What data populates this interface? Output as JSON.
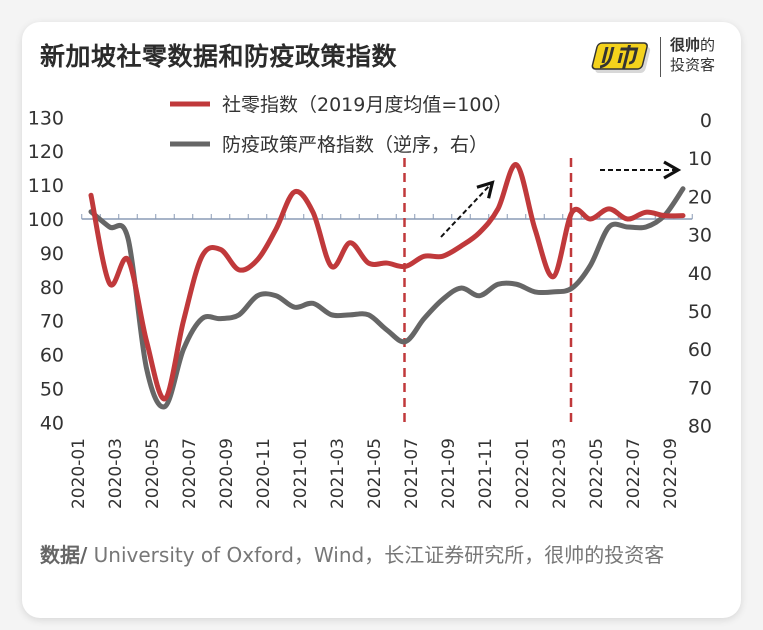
{
  "title": "新加坡社零数据和防疫政策指数",
  "logo": {
    "line1_bold": "很帅",
    "line1_rest": "的",
    "line2": "投资客",
    "mark_text": "帅"
  },
  "footer": {
    "label": "数据/",
    "text": " University of Oxford，Wind，长江证券研究所，很帅的投资客"
  },
  "colors": {
    "red": "#c0393b",
    "gray": "#666666",
    "baseline": "#8a9bb5",
    "arrow": "#111111"
  },
  "chart_data": {
    "type": "line",
    "title": "新加坡社零数据和防疫政策指数",
    "x": [
      "2020-01",
      "2020-02",
      "2020-03",
      "2020-04",
      "2020-05",
      "2020-06",
      "2020-07",
      "2020-08",
      "2020-09",
      "2020-10",
      "2020-11",
      "2020-12",
      "2021-01",
      "2021-02",
      "2021-03",
      "2021-04",
      "2021-05",
      "2021-06",
      "2021-07",
      "2021-08",
      "2021-09",
      "2021-10",
      "2021-11",
      "2021-12",
      "2022-01",
      "2022-02",
      "2022-03",
      "2022-04",
      "2022-05",
      "2022-06",
      "2022-07",
      "2022-08",
      "2022-09"
    ],
    "x_tick_labels": [
      "2020-01",
      "2020-03",
      "2020-05",
      "2020-07",
      "2020-09",
      "2020-11",
      "2021-01",
      "2021-03",
      "2021-05",
      "2021-07",
      "2021-09",
      "2021-11",
      "2022-01",
      "2022-03",
      "2022-05",
      "2022-07",
      "2022-09"
    ],
    "series": [
      {
        "name": "社零指数（2019月度均值=100）",
        "axis": "left",
        "values": [
          107,
          81,
          88,
          64,
          47,
          70,
          89,
          91,
          85,
          88,
          97,
          108,
          102,
          86,
          93,
          87,
          87,
          86,
          89,
          89,
          92,
          96,
          103,
          116,
          97,
          83,
          102,
          100,
          103,
          100,
          102,
          101,
          101
        ]
      },
      {
        "name": "防疫政策严格指数（逆序，右）",
        "axis": "right",
        "values": [
          24,
          28,
          31,
          65,
          75,
          60,
          52,
          52,
          51,
          46,
          46,
          49,
          48,
          51,
          51,
          51,
          55,
          58,
          52,
          47,
          44,
          46,
          43,
          43,
          45,
          45,
          44,
          38,
          28,
          28,
          28,
          25,
          18
        ]
      }
    ],
    "left_axis": {
      "ylim": [
        40,
        130
      ],
      "ticks": [
        "130",
        "120",
        "110",
        "100",
        "90",
        "80",
        "70",
        "60",
        "50",
        "40"
      ]
    },
    "right_axis": {
      "ylim": [
        0,
        80
      ],
      "reversed": true,
      "ticks": [
        "0",
        "10",
        "20",
        "30",
        "40",
        "50",
        "60",
        "70",
        "80"
      ]
    },
    "baseline": 100,
    "vlines": [
      "2021-06",
      "2022-03"
    ],
    "legend": "top-center",
    "grid": false
  }
}
